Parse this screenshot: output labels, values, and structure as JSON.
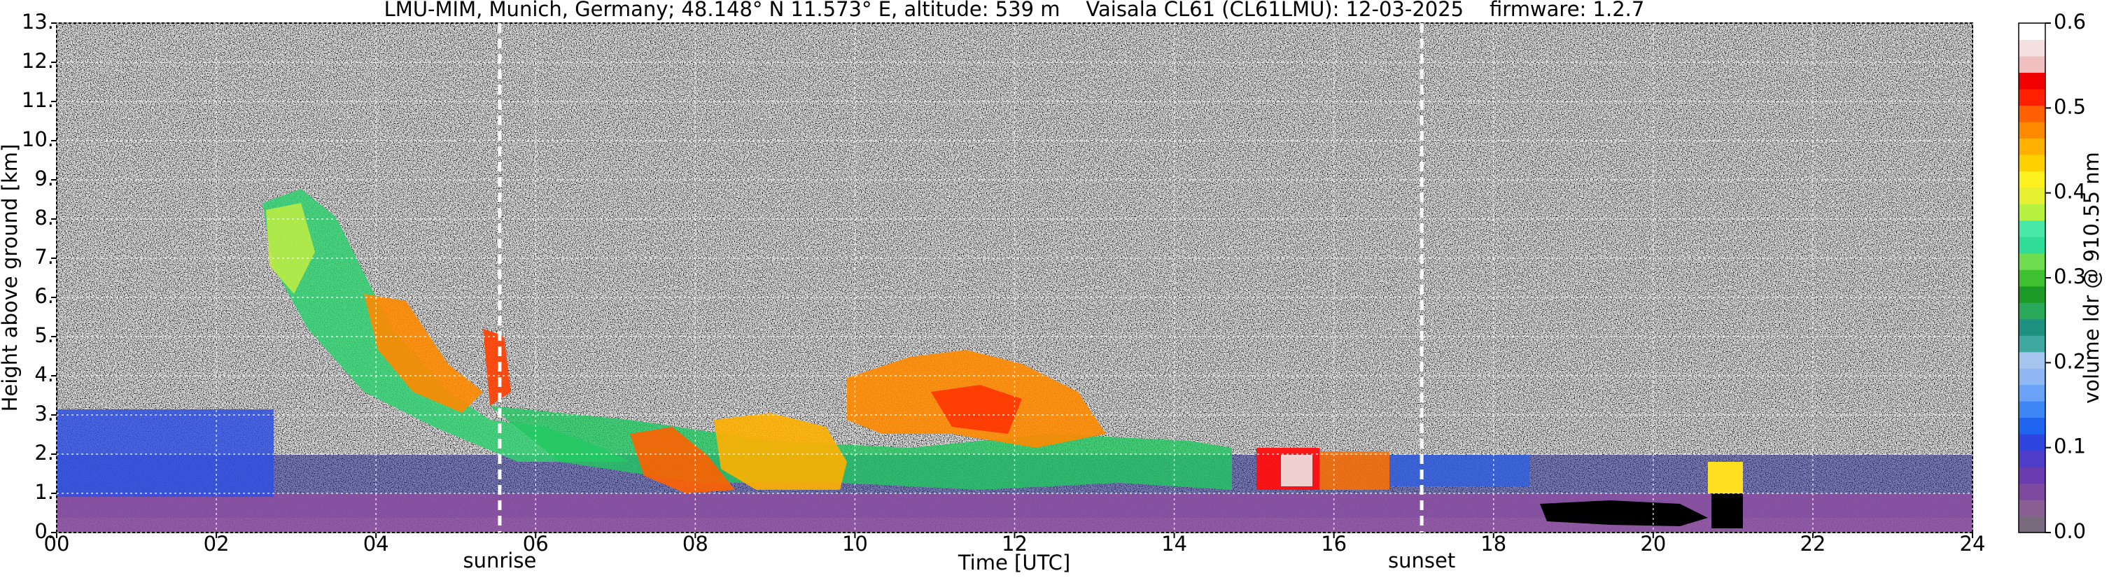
{
  "chart_data": {
    "type": "heatmap",
    "title": "LMU-MIM, Munich, Germany; 48.148° N 11.573° E, altitude: 539 m    Vaisala CL61 (CL61LMU): 12-03-2025    firmware: 1.2.7",
    "xlabel": "Time [UTC]",
    "ylabel": "Height above ground [km]",
    "xlim": [
      0,
      24
    ],
    "xticks": [
      {
        "value": 0,
        "label": "00"
      },
      {
        "value": 2,
        "label": "02"
      },
      {
        "value": 4,
        "label": "04"
      },
      {
        "value": 6,
        "label": "06"
      },
      {
        "value": 8,
        "label": "08"
      },
      10,
      12,
      14,
      16,
      18,
      20,
      22,
      24
    ],
    "ylim": [
      0,
      13
    ],
    "yticks": [
      {
        "value": 0,
        "label": "0."
      },
      {
        "value": 1,
        "label": "1."
      },
      {
        "value": 2,
        "label": "2."
      },
      {
        "value": 3,
        "label": "3."
      },
      {
        "value": 4,
        "label": "4."
      },
      {
        "value": 5,
        "label": "5."
      },
      {
        "value": 6,
        "label": "6."
      },
      {
        "value": 7,
        "label": "7."
      },
      {
        "value": 8,
        "label": "8."
      },
      {
        "value": 9,
        "label": "9."
      },
      {
        "value": 10,
        "label": "10."
      },
      {
        "value": 11,
        "label": "11."
      },
      {
        "value": 12,
        "label": "12."
      },
      {
        "value": 13,
        "label": "13."
      }
    ],
    "grid": true,
    "markers": [
      {
        "label": "sunrise",
        "x": 5.55
      },
      {
        "label": "sunset",
        "x": 17.1
      }
    ],
    "colorbar": {
      "label": "volume ldr @ 910.55 nm",
      "lim": [
        0,
        0.6
      ],
      "ticks": [
        {
          "value": 0,
          "label": "0.0"
        },
        0.1,
        0.2,
        0.3,
        0.4,
        0.5,
        0.6
      ],
      "colors": [
        "#7a6a7e",
        "#8a5f94",
        "#7e4aa0",
        "#6a3cb0",
        "#4f3cc8",
        "#2f45e0",
        "#1e64f0",
        "#3c86f5",
        "#6aa2f7",
        "#8fb8f5",
        "#a6c6f0",
        "#3fa8a0",
        "#1e9080",
        "#2aa85a",
        "#1c9a28",
        "#3fc030",
        "#70dd50",
        "#2fdc98",
        "#48e8a8",
        "#b8f040",
        "#e6f030",
        "#fff020",
        "#ffd000",
        "#ffb000",
        "#ff8a00",
        "#ff6000",
        "#ff2000",
        "#f00000",
        "#f0c0c0",
        "#f4e0e0",
        "#ffffff"
      ]
    }
  }
}
